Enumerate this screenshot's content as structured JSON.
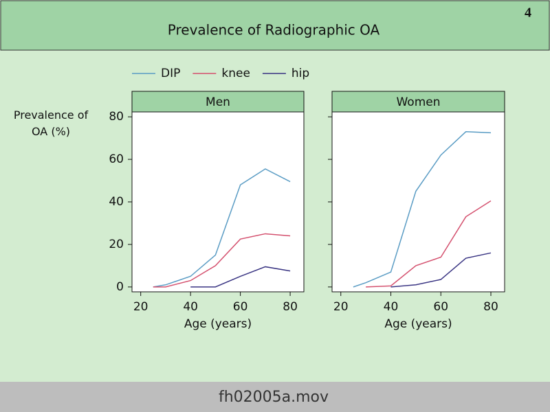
{
  "page_number": "4",
  "title": "Prevalence of Radiographic OA",
  "footer": "fh02005a.mov",
  "chart_data": [
    {
      "type": "line",
      "title": "Men",
      "xlabel": "Age (years)",
      "ylabel": "Prevalence of OA (%)",
      "x": [
        25,
        30,
        40,
        50,
        60,
        70,
        80
      ],
      "series": [
        {
          "name": "DIP",
          "color": "#5a9cc4",
          "values": [
            0,
            1,
            5,
            15,
            48,
            55.5,
            49.5
          ]
        },
        {
          "name": "knee",
          "color": "#d4506e",
          "values": [
            0,
            0,
            3,
            10,
            22.5,
            25,
            24
          ]
        },
        {
          "name": "hip",
          "color": "#3a3583",
          "values": [
            null,
            null,
            0,
            0,
            5,
            9.5,
            7.5
          ]
        }
      ],
      "xlim": [
        16.5,
        85.5
      ],
      "ylim": [
        -2.3,
        82.3
      ],
      "xticks": [
        20,
        40,
        60,
        80
      ],
      "yticks": [
        0,
        20,
        40,
        60,
        80
      ]
    },
    {
      "type": "line",
      "title": "Women",
      "xlabel": "Age (years)",
      "x": [
        25,
        30,
        40,
        50,
        60,
        70,
        80
      ],
      "series": [
        {
          "name": "DIP",
          "color": "#5a9cc4",
          "values": [
            0,
            2,
            7,
            45,
            62,
            73,
            72.5
          ]
        },
        {
          "name": "knee",
          "color": "#d4506e",
          "values": [
            null,
            0,
            0.5,
            10,
            14,
            33,
            40.5
          ]
        },
        {
          "name": "hip",
          "color": "#3a3583",
          "values": [
            null,
            null,
            0,
            1,
            3.5,
            13.5,
            16
          ]
        }
      ],
      "xlim": [
        16.5,
        85.5
      ],
      "ylim": [
        -2.3,
        82.3
      ],
      "xticks": [
        20,
        40,
        60,
        80
      ],
      "yticks": [
        0,
        20,
        40,
        60,
        80
      ]
    }
  ]
}
